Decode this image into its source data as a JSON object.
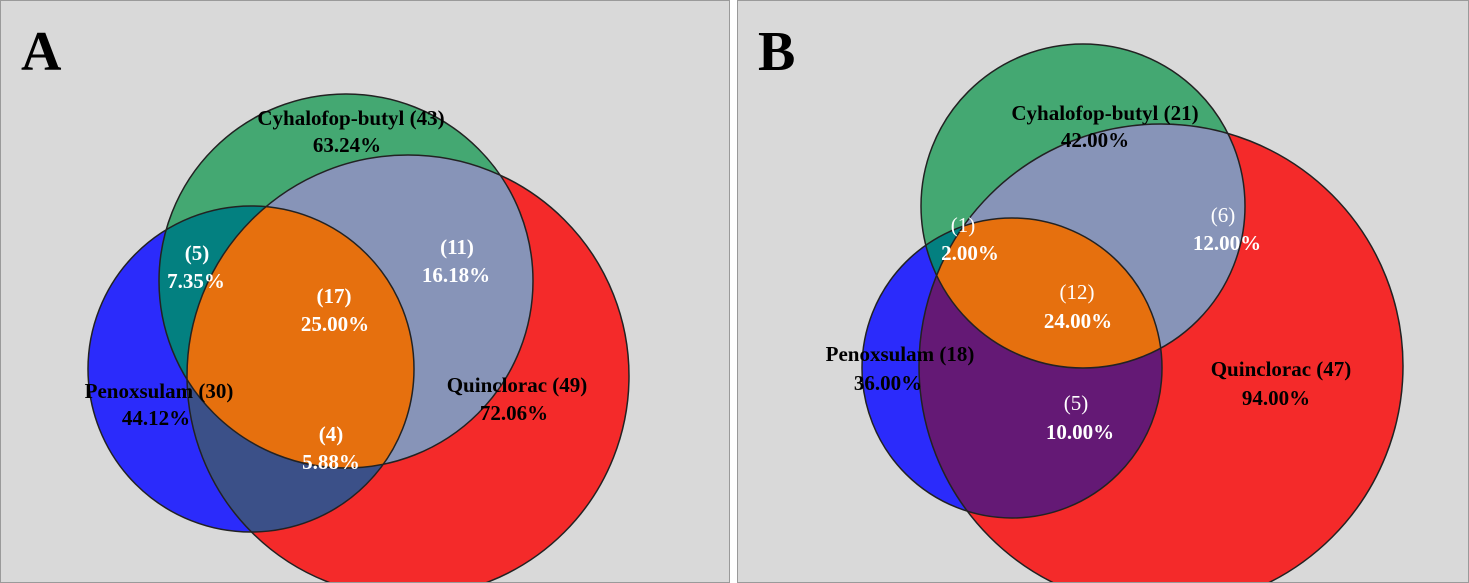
{
  "panels": [
    {
      "label": "A",
      "sets": {
        "cyhalofop": {
          "name": "Cyhalofop-butyl (43)",
          "pct": "63.24%"
        },
        "penoxsulam": {
          "name": "Penoxsulam (30)",
          "pct": "44.12%"
        },
        "quinclorac": {
          "name": "Quinclorac (49)",
          "pct": "72.06%"
        }
      },
      "overlaps": {
        "cyh_pen": {
          "count": "(5)",
          "pct": "7.35%"
        },
        "cyh_qui": {
          "count": "(11)",
          "pct": "16.18%"
        },
        "all": {
          "count": "(17)",
          "pct": "25.00%"
        },
        "pen_qui": {
          "count": "(4)",
          "pct": "5.88%"
        }
      }
    },
    {
      "label": "B",
      "sets": {
        "cyhalofop": {
          "name": "Cyhalofop-butyl (21)",
          "pct": "42.00%"
        },
        "penoxsulam": {
          "name": "Penoxsulam (18)",
          "pct": "36.00%"
        },
        "quinclorac": {
          "name": "Quinclorac (47)",
          "pct": "94.00%"
        }
      },
      "overlaps": {
        "cyh_pen": {
          "count": "(1)",
          "pct": "2.00%"
        },
        "cyh_qui": {
          "count": "(6)",
          "pct": "12.00%"
        },
        "all": {
          "count": "(12)",
          "pct": "24.00%"
        },
        "pen_qui": {
          "count": "(5)",
          "pct": "10.00%"
        }
      }
    }
  ],
  "colors": {
    "green": "#44a872",
    "blue": "#2b2bfb",
    "red": "#f42a2a",
    "cyh_pen": "#038080",
    "cyh_qui": "#8794b8",
    "pen_qui_a": "#3b5088",
    "pen_qui_b": "#641975",
    "center": "#e6700e",
    "background": "#d9d9d9"
  }
}
